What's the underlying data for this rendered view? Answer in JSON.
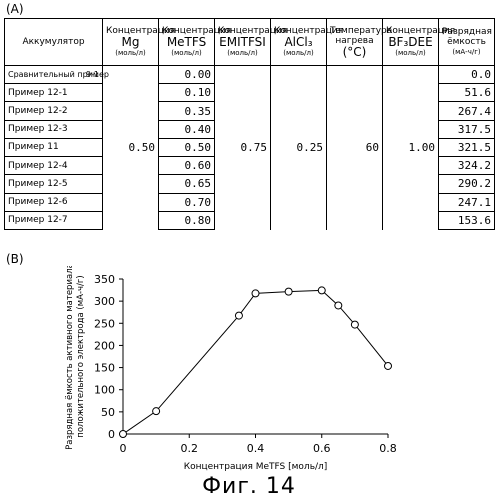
{
  "panel_a_label": "(A)",
  "panel_b_label": "(B)",
  "table": {
    "headers": {
      "battery": "Аккумулятор",
      "mg": {
        "top": "Концентрация",
        "main": "Mg",
        "unit": "(моль/л)"
      },
      "metfs": {
        "top": "Концентрация",
        "main": "MeTFS",
        "unit": "(моль/л)"
      },
      "emitfsi": {
        "top": "Концентрация",
        "main": "EMITFSI",
        "unit": "(моль/л)"
      },
      "alcl3": {
        "top": "Концентрация",
        "main": "AlCl₃",
        "unit": "(моль/л)"
      },
      "temp": {
        "top": "Температура нагрева",
        "main": "(°C)"
      },
      "bf3dee": {
        "top": "Концентрация",
        "main": "BF₃DEE",
        "unit": "(моль/л)"
      },
      "capacity": {
        "top": "Разрядная ёмкость",
        "unit": "(мА-ч/г)"
      }
    },
    "rows": [
      {
        "name": "Сравнительный пример",
        "suffix": "9-1",
        "metfs": "0.00",
        "capacity": "0.0"
      },
      {
        "name": "Пример 12-1",
        "suffix": "",
        "metfs": "0.10",
        "capacity": "51.6"
      },
      {
        "name": "Пример 12-2",
        "suffix": "",
        "metfs": "0.35",
        "capacity": "267.4"
      },
      {
        "name": "Пример 12-3",
        "suffix": "",
        "metfs": "0.40",
        "capacity": "317.5"
      },
      {
        "name": "Пример 11",
        "suffix": "",
        "metfs": "0.50",
        "capacity": "321.5"
      },
      {
        "name": "Пример 12-4",
        "suffix": "",
        "metfs": "0.60",
        "capacity": "324.2"
      },
      {
        "name": "Пример 12-5",
        "suffix": "",
        "metfs": "0.65",
        "capacity": "290.2"
      },
      {
        "name": "Пример 12-6",
        "suffix": "",
        "metfs": "0.70",
        "capacity": "247.1"
      },
      {
        "name": "Пример 12-7",
        "suffix": "",
        "metfs": "0.80",
        "capacity": "153.6"
      }
    ],
    "constants": {
      "mg": "0.50",
      "emitfsi": "0.75",
      "alcl3": "0.25",
      "temp": "60",
      "bf3dee": "1.00"
    }
  },
  "chart_data": {
    "type": "line",
    "xlabel": "Концентрация MeTFS [моль/л]",
    "ylabel_line1": "Разрядная ёмкость активного материала",
    "ylabel_line2": "положительного электрода (мА-ч/г)",
    "xlim": [
      0,
      0.8
    ],
    "ylim": [
      0,
      350
    ],
    "xticks": [
      0,
      0.2,
      0.4,
      0.6,
      0.8
    ],
    "xtick_labels": [
      "0",
      "0.2",
      "0.4",
      "0.6",
      "0.8"
    ],
    "yticks": [
      0,
      50,
      100,
      150,
      200,
      250,
      300,
      350
    ],
    "ytick_labels": [
      "0",
      "50",
      "100",
      "150",
      "200",
      "250",
      "300",
      "350"
    ],
    "x": [
      0,
      0.1,
      0.35,
      0.4,
      0.5,
      0.6,
      0.65,
      0.7,
      0.8
    ],
    "y": [
      0,
      51.6,
      267.4,
      317.5,
      321.5,
      324.2,
      290.2,
      247.1,
      153.6
    ],
    "grid": false,
    "marker": "open-circle"
  },
  "caption": "Фиг. 14"
}
